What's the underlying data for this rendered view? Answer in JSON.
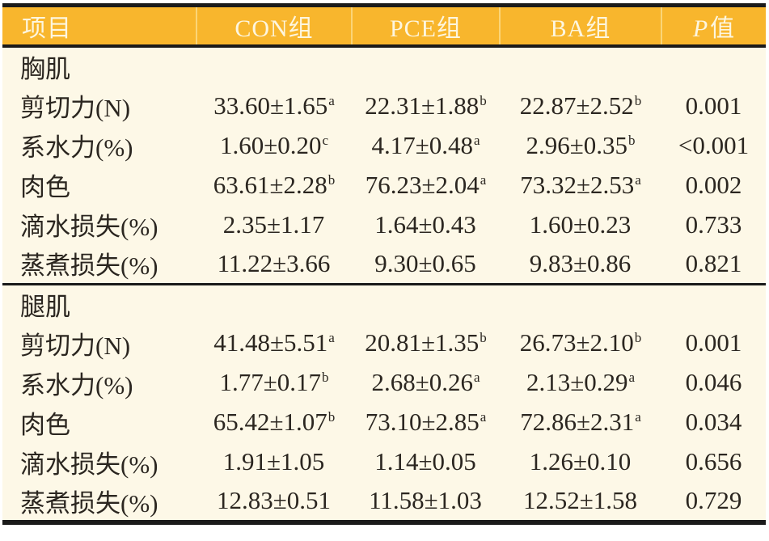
{
  "colors": {
    "header_bg": "#F8B62D",
    "header_text": "#FDF6DF",
    "header_separator": "#FBD578",
    "body_bg": "#FDF8E7",
    "border_color": "#1A1A1A",
    "text_color": "#2B2620"
  },
  "header": {
    "col_item": "项目",
    "col_con": "CON组",
    "col_pce": "PCE组",
    "col_ba": "BA组",
    "col_p_italic": "P",
    "col_p_rest": "值"
  },
  "sections": [
    {
      "title": "胸肌",
      "rows": [
        {
          "item": "剪切力(N)",
          "con": "33.60±1.65",
          "con_sup": "a",
          "pce": "22.31±1.88",
          "pce_sup": "b",
          "ba": "22.87±2.52",
          "ba_sup": "b",
          "p": "0.001"
        },
        {
          "item": "系水力(%)",
          "con": "1.60±0.20",
          "con_sup": "c",
          "pce": "4.17±0.48",
          "pce_sup": "a",
          "ba": "2.96±0.35",
          "ba_sup": "b",
          "p": "<0.001"
        },
        {
          "item": "肉色",
          "con": "63.61±2.28",
          "con_sup": "b",
          "pce": "76.23±2.04",
          "pce_sup": "a",
          "ba": "73.32±2.53",
          "ba_sup": "a",
          "p": "0.002"
        },
        {
          "item": "滴水损失(%)",
          "con": "2.35±1.17",
          "con_sup": "",
          "pce": "1.64±0.43",
          "pce_sup": "",
          "ba": "1.60±0.23",
          "ba_sup": "",
          "p": "0.733"
        },
        {
          "item": "蒸煮损失(%)",
          "con": "11.22±3.66",
          "con_sup": "",
          "pce": "9.30±0.65",
          "pce_sup": "",
          "ba": "9.83±0.86",
          "ba_sup": "",
          "p": "0.821"
        }
      ]
    },
    {
      "title": "腿肌",
      "rows": [
        {
          "item": "剪切力(N)",
          "con": "41.48±5.51",
          "con_sup": "a",
          "pce": "20.81±1.35",
          "pce_sup": "b",
          "ba": "26.73±2.10",
          "ba_sup": "b",
          "p": "0.001"
        },
        {
          "item": "系水力(%)",
          "con": "1.77±0.17",
          "con_sup": "b",
          "pce": "2.68±0.26",
          "pce_sup": "a",
          "ba": "2.13±0.29",
          "ba_sup": "a",
          "p": "0.046"
        },
        {
          "item": "肉色",
          "con": "65.42±1.07",
          "con_sup": "b",
          "pce": "73.10±2.85",
          "pce_sup": "a",
          "ba": "72.86±2.31",
          "ba_sup": "a",
          "p": "0.034"
        },
        {
          "item": "滴水损失(%)",
          "con": "1.91±1.05",
          "con_sup": "",
          "pce": "1.14±0.05",
          "pce_sup": "",
          "ba": "1.26±0.10",
          "ba_sup": "",
          "p": "0.656"
        },
        {
          "item": "蒸煮损失(%)",
          "con": "12.83±0.51",
          "con_sup": "",
          "pce": "11.58±1.03",
          "pce_sup": "",
          "ba": "12.52±1.58",
          "ba_sup": "",
          "p": "0.729"
        }
      ]
    }
  ]
}
